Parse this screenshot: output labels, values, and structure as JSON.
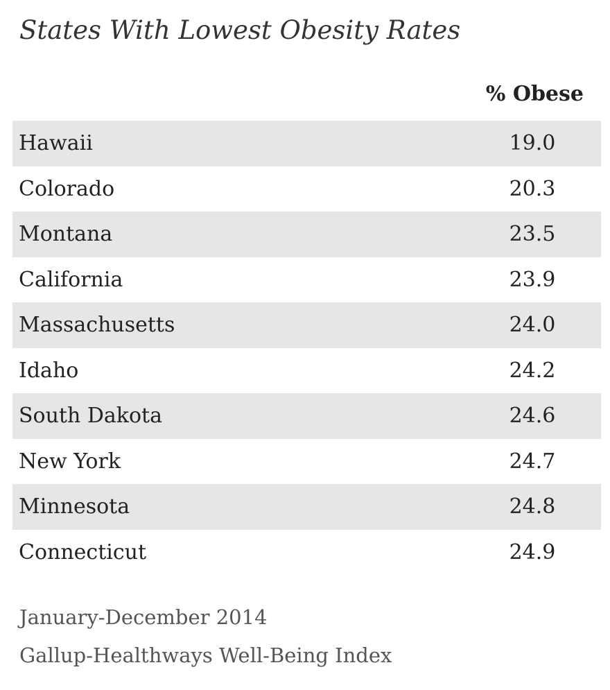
{
  "title": "States With Lowest Obesity Rates",
  "footer": {
    "date_range": "January-December 2014",
    "source": "Gallup-Healthways Well-Being Index"
  },
  "chart_data": {
    "type": "table",
    "title": "States With Lowest Obesity Rates",
    "columns": [
      "",
      "% Obese"
    ],
    "rows": [
      {
        "state": "Hawaii",
        "value": "19.0"
      },
      {
        "state": "Colorado",
        "value": "20.3"
      },
      {
        "state": "Montana",
        "value": "23.5"
      },
      {
        "state": "California",
        "value": "23.9"
      },
      {
        "state": "Massachusetts",
        "value": "24.0"
      },
      {
        "state": "Idaho",
        "value": "24.2"
      },
      {
        "state": "South Dakota",
        "value": "24.6"
      },
      {
        "state": "New York",
        "value": "24.7"
      },
      {
        "state": "Minnesota",
        "value": "24.8"
      },
      {
        "state": "Connecticut",
        "value": "24.9"
      }
    ],
    "row_shading": "alternating",
    "shade_color": "#e6e6e6"
  }
}
